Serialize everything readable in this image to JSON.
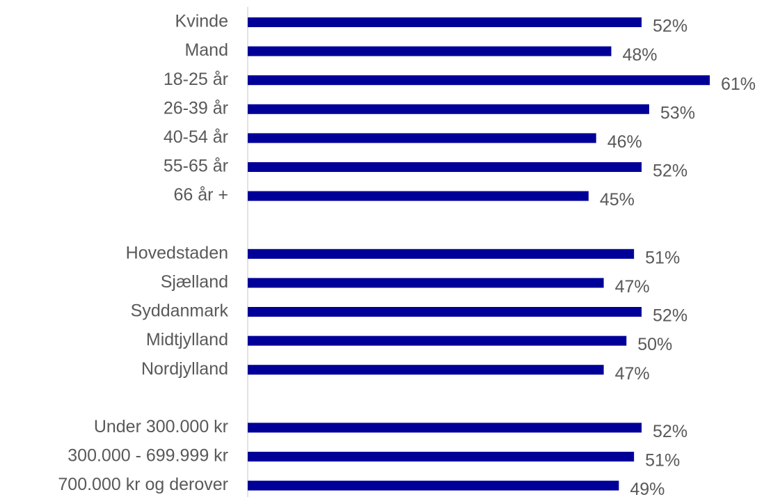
{
  "chart_data": {
    "type": "hbar",
    "categories": [
      "Kvinde",
      "Mand",
      "18-25 år",
      "26-39 år",
      "40-54 år",
      "55-65 år",
      "66 år +",
      null,
      "Hovedstaden",
      "Sjælland",
      "Syddanmark",
      "Midtjylland",
      "Nordjylland",
      null,
      "Under 300.000 kr",
      "300.000 - 699.999 kr",
      "700.000 kr og derover"
    ],
    "values": [
      52,
      48,
      61,
      53,
      46,
      52,
      45,
      null,
      51,
      47,
      52,
      50,
      47,
      null,
      52,
      51,
      49
    ],
    "value_labels": [
      "52%",
      "48%",
      "61%",
      "53%",
      "46%",
      "52%",
      "45%",
      null,
      "51%",
      "47%",
      "52%",
      "50%",
      "47%",
      null,
      "52%",
      "51%",
      "49%"
    ],
    "color": "#000099",
    "xlim": [
      0,
      61
    ]
  }
}
